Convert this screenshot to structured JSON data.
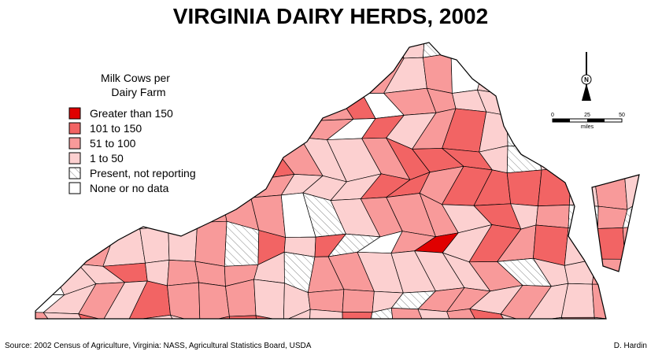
{
  "title": "VIRGINIA DAIRY HERDS, 2002",
  "legend": {
    "title_lines": [
      "Milk Cows per",
      "Dairy Farm"
    ],
    "items": [
      {
        "label": "Greater than 150",
        "color": "#e00000"
      },
      {
        "label": "101 to 150",
        "color": "#f26464"
      },
      {
        "label": "51 to 100",
        "color": "#f89a9a"
      },
      {
        "label": "1 to 50",
        "color": "#fcd0d0"
      },
      {
        "label": "Present, not reporting",
        "pattern": "hatch"
      },
      {
        "label": "None or no data",
        "color": "#ffffff"
      }
    ]
  },
  "north_arrow": {
    "label": "N"
  },
  "scale_bar": {
    "ticks": [
      "0",
      "25",
      "50"
    ],
    "unit": "miles"
  },
  "source": "Source: 2002 Census of Agriculture, Virginia: NASS, Agricultural Statistics Board, USDA",
  "author": "D. Hardin"
}
